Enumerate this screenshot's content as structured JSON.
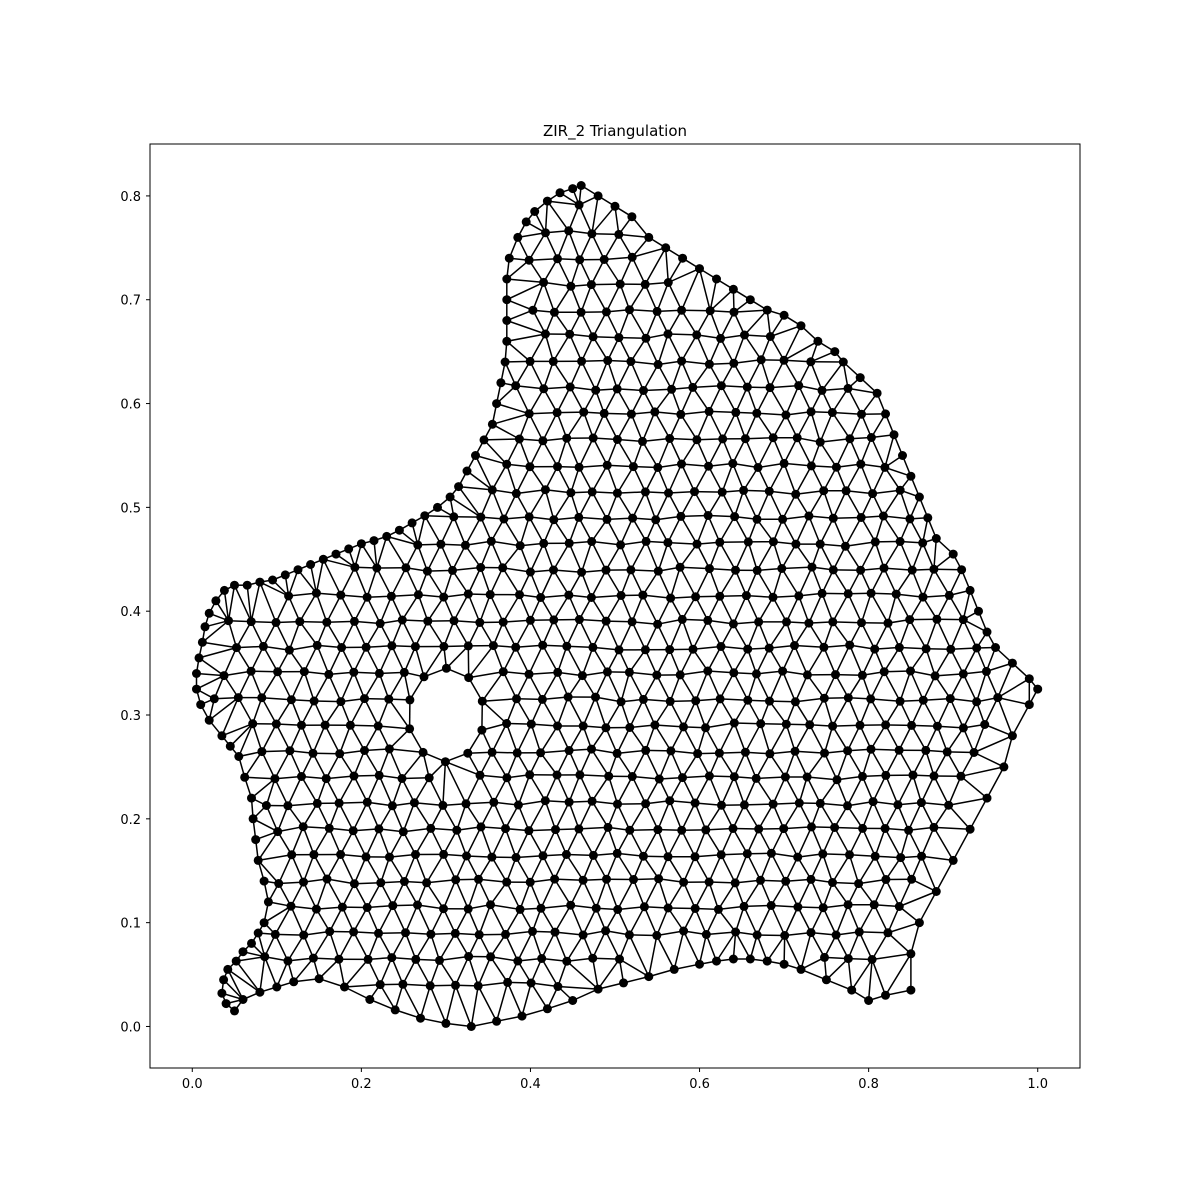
{
  "chart_data": {
    "type": "scatter",
    "title": "ZIR_2 Triangulation",
    "xlabel": "",
    "ylabel": "",
    "xlim": [
      -0.05,
      1.05
    ],
    "ylim": [
      -0.04,
      0.85
    ],
    "x_ticks": [
      "0.0",
      "0.2",
      "0.4",
      "0.6",
      "0.8",
      "1.0"
    ],
    "y_ticks": [
      "0.0",
      "0.1",
      "0.2",
      "0.3",
      "0.4",
      "0.5",
      "0.6",
      "0.7",
      "0.8"
    ],
    "grid": false,
    "legend": "none",
    "marker_color": "#000000",
    "edge_color": "#000000",
    "description_of_marks": "mesh nodes joined by triangle edges",
    "boundary": [
      [
        0.46,
        0.81
      ],
      [
        0.48,
        0.8
      ],
      [
        0.5,
        0.79
      ],
      [
        0.52,
        0.78
      ],
      [
        0.54,
        0.76
      ],
      [
        0.56,
        0.75
      ],
      [
        0.58,
        0.74
      ],
      [
        0.6,
        0.73
      ],
      [
        0.62,
        0.72
      ],
      [
        0.64,
        0.71
      ],
      [
        0.66,
        0.7
      ],
      [
        0.68,
        0.69
      ],
      [
        0.7,
        0.685
      ],
      [
        0.72,
        0.675
      ],
      [
        0.74,
        0.66
      ],
      [
        0.76,
        0.65
      ],
      [
        0.77,
        0.64
      ],
      [
        0.79,
        0.625
      ],
      [
        0.81,
        0.61
      ],
      [
        0.82,
        0.59
      ],
      [
        0.83,
        0.57
      ],
      [
        0.84,
        0.55
      ],
      [
        0.85,
        0.53
      ],
      [
        0.86,
        0.51
      ],
      [
        0.87,
        0.49
      ],
      [
        0.88,
        0.47
      ],
      [
        0.9,
        0.455
      ],
      [
        0.91,
        0.44
      ],
      [
        0.92,
        0.42
      ],
      [
        0.93,
        0.4
      ],
      [
        0.94,
        0.38
      ],
      [
        0.95,
        0.365
      ],
      [
        0.97,
        0.35
      ],
      [
        0.99,
        0.335
      ],
      [
        1.0,
        0.325
      ],
      [
        0.99,
        0.31
      ],
      [
        0.97,
        0.28
      ],
      [
        0.96,
        0.25
      ],
      [
        0.94,
        0.22
      ],
      [
        0.92,
        0.19
      ],
      [
        0.9,
        0.16
      ],
      [
        0.88,
        0.13
      ],
      [
        0.86,
        0.1
      ],
      [
        0.85,
        0.07
      ],
      [
        0.85,
        0.035
      ],
      [
        0.82,
        0.03
      ],
      [
        0.8,
        0.025
      ],
      [
        0.78,
        0.035
      ],
      [
        0.75,
        0.045
      ],
      [
        0.72,
        0.055
      ],
      [
        0.7,
        0.06
      ],
      [
        0.68,
        0.063
      ],
      [
        0.66,
        0.065
      ],
      [
        0.64,
        0.065
      ],
      [
        0.62,
        0.063
      ],
      [
        0.6,
        0.06
      ],
      [
        0.57,
        0.055
      ],
      [
        0.54,
        0.048
      ],
      [
        0.51,
        0.042
      ],
      [
        0.48,
        0.036
      ],
      [
        0.45,
        0.025
      ],
      [
        0.42,
        0.017
      ],
      [
        0.39,
        0.01
      ],
      [
        0.36,
        0.005
      ],
      [
        0.33,
        0.0
      ],
      [
        0.3,
        0.003
      ],
      [
        0.27,
        0.008
      ],
      [
        0.24,
        0.016
      ],
      [
        0.21,
        0.026
      ],
      [
        0.18,
        0.038
      ],
      [
        0.15,
        0.046
      ],
      [
        0.12,
        0.043
      ],
      [
        0.1,
        0.038
      ],
      [
        0.08,
        0.033
      ],
      [
        0.06,
        0.026
      ],
      [
        0.05,
        0.015
      ],
      [
        0.04,
        0.022
      ],
      [
        0.035,
        0.032
      ],
      [
        0.037,
        0.045
      ],
      [
        0.042,
        0.055
      ],
      [
        0.052,
        0.063
      ],
      [
        0.06,
        0.072
      ],
      [
        0.07,
        0.08
      ],
      [
        0.078,
        0.09
      ],
      [
        0.085,
        0.1
      ],
      [
        0.09,
        0.12
      ],
      [
        0.085,
        0.14
      ],
      [
        0.078,
        0.16
      ],
      [
        0.075,
        0.18
      ],
      [
        0.072,
        0.2
      ],
      [
        0.07,
        0.22
      ],
      [
        0.062,
        0.24
      ],
      [
        0.055,
        0.26
      ],
      [
        0.045,
        0.27
      ],
      [
        0.035,
        0.28
      ],
      [
        0.02,
        0.295
      ],
      [
        0.01,
        0.31
      ],
      [
        0.005,
        0.325
      ],
      [
        0.005,
        0.34
      ],
      [
        0.008,
        0.355
      ],
      [
        0.012,
        0.37
      ],
      [
        0.015,
        0.385
      ],
      [
        0.02,
        0.398
      ],
      [
        0.028,
        0.41
      ],
      [
        0.038,
        0.42
      ],
      [
        0.05,
        0.425
      ],
      [
        0.065,
        0.425
      ],
      [
        0.08,
        0.428
      ],
      [
        0.095,
        0.43
      ],
      [
        0.11,
        0.435
      ],
      [
        0.125,
        0.44
      ],
      [
        0.14,
        0.445
      ],
      [
        0.155,
        0.45
      ],
      [
        0.17,
        0.455
      ],
      [
        0.185,
        0.46
      ],
      [
        0.2,
        0.465
      ],
      [
        0.215,
        0.468
      ],
      [
        0.23,
        0.472
      ],
      [
        0.245,
        0.478
      ],
      [
        0.26,
        0.485
      ],
      [
        0.275,
        0.492
      ],
      [
        0.29,
        0.5
      ],
      [
        0.305,
        0.51
      ],
      [
        0.315,
        0.52
      ],
      [
        0.325,
        0.535
      ],
      [
        0.335,
        0.55
      ],
      [
        0.345,
        0.565
      ],
      [
        0.355,
        0.58
      ],
      [
        0.36,
        0.6
      ],
      [
        0.365,
        0.62
      ],
      [
        0.37,
        0.64
      ],
      [
        0.372,
        0.66
      ],
      [
        0.372,
        0.68
      ],
      [
        0.372,
        0.7
      ],
      [
        0.372,
        0.72
      ],
      [
        0.375,
        0.74
      ],
      [
        0.385,
        0.76
      ],
      [
        0.395,
        0.775
      ],
      [
        0.405,
        0.785
      ],
      [
        0.42,
        0.795
      ],
      [
        0.435,
        0.803
      ],
      [
        0.45,
        0.807
      ]
    ],
    "hole": {
      "center": [
        0.3,
        0.3
      ],
      "radius": 0.045
    }
  }
}
